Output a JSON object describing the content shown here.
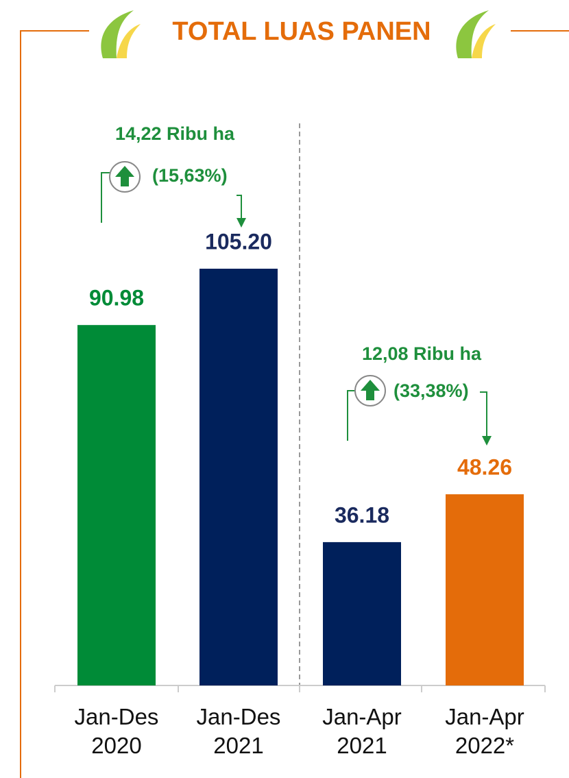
{
  "chart_data": {
    "type": "bar",
    "title": "TOTAL LUAS PANEN",
    "categories": [
      "Jan-Des 2020",
      "Jan-Des 2021",
      "Jan-Apr 2021",
      "Jan-Apr 2022*"
    ],
    "values": [
      90.98,
      105.2,
      36.18,
      48.26
    ],
    "value_labels": [
      "90.98",
      "105.20",
      "36.18",
      "48.26"
    ],
    "colors": [
      "#008b37",
      "#00205b",
      "#00205b",
      "#e46c0a"
    ],
    "annotations": [
      "14,22 Ribu ha",
      "(15,63%)",
      "12,08 Ribu ha",
      "(33,38%)"
    ]
  }
}
